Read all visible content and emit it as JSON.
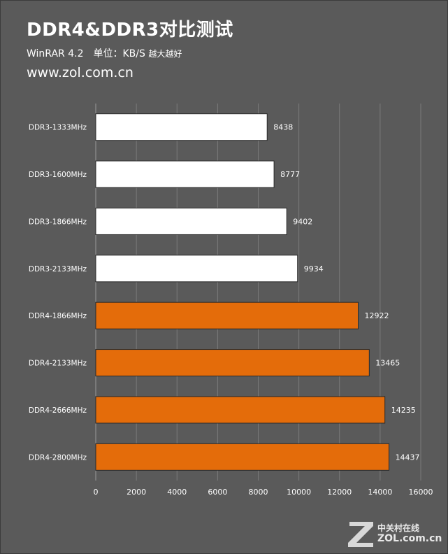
{
  "header": {
    "title": "DDR4&DDR3对比测试",
    "subtitle_test": "WinRAR 4.2",
    "subtitle_unit": "单位：KB/S",
    "subtitle_note": "越大越好",
    "site": "www.zol.com.cn"
  },
  "watermark": {
    "cn": "中关村在线",
    "en": "ZOL.com.cn"
  },
  "colors": {
    "background": "#5a5a5a",
    "ddr3_bar": "#ffffff",
    "ddr4_bar": "#e46c0a",
    "gridline": "#7a7a7a",
    "text": "#ffffff"
  },
  "chart_data": {
    "type": "bar",
    "orientation": "horizontal",
    "categories": [
      "DDR3-1333MHz",
      "DDR3-1600MHz",
      "DDR3-1866MHz",
      "DDR3-2133MHz",
      "DDR4-1866MHz",
      "DDR4-2133MHz",
      "DDR4-2666MHz",
      "DDR4-2800MHz"
    ],
    "values": [
      8438,
      8777,
      9402,
      9934,
      12922,
      13465,
      14235,
      14437
    ],
    "bar_colors": [
      "#ffffff",
      "#ffffff",
      "#ffffff",
      "#ffffff",
      "#e46c0a",
      "#e46c0a",
      "#e46c0a",
      "#e46c0a"
    ],
    "xlim": [
      0,
      16000
    ],
    "xticks": [
      0,
      2000,
      4000,
      6000,
      8000,
      10000,
      12000,
      14000,
      16000
    ],
    "grid": true,
    "data_labels": true
  }
}
